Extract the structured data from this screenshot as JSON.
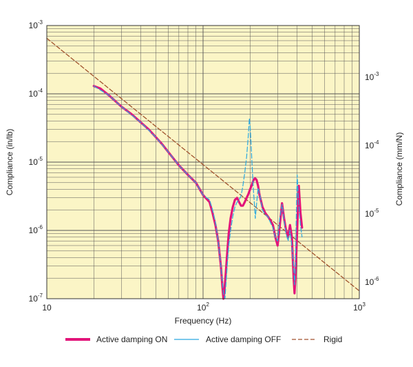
{
  "chart_data": {
    "type": "line",
    "xlabel": "Frequency (Hz)",
    "ylabel": "Compliance (in/lb)",
    "ylabel_right": "Compliance (mm/N)",
    "x_scale": "log",
    "y_scale": "log",
    "xlim": [
      10,
      1000
    ],
    "ylim": [
      1e-07,
      0.001
    ],
    "ylim_right": [
      5.71e-07,
      0.00571
    ],
    "x_tick_labels": [
      {
        "value": 10,
        "base": "10",
        "exp": ""
      },
      {
        "value": 100,
        "base": "10",
        "exp": "2"
      },
      {
        "value": 1000,
        "base": "10",
        "exp": "3"
      }
    ],
    "y_tick_labels": [
      {
        "value": 1e-07,
        "base": "10",
        "exp": "-7"
      },
      {
        "value": 1e-06,
        "base": "10",
        "exp": "-6"
      },
      {
        "value": 1e-05,
        "base": "10",
        "exp": "-5"
      },
      {
        "value": 0.0001,
        "base": "10",
        "exp": "-4"
      },
      {
        "value": 0.001,
        "base": "10",
        "exp": "-3"
      }
    ],
    "y_right_tick_labels": [
      {
        "value": 1e-06,
        "base": "10",
        "exp": "-6"
      },
      {
        "value": 1e-05,
        "base": "10",
        "exp": "-5"
      },
      {
        "value": 0.0001,
        "base": "10",
        "exp": "-4"
      },
      {
        "value": 0.001,
        "base": "10",
        "exp": "-3"
      }
    ],
    "grid": true,
    "legend_position": "bottom",
    "colors": {
      "plot_background": "#fbf5c6",
      "grid": "#555555",
      "damping_on": "#e2157a",
      "damping_off": "#29a8e0",
      "rigid": "#a0522d"
    },
    "series": [
      {
        "name": "Active damping ON",
        "style": "solid",
        "x": [
          20,
          22,
          25,
          30,
          35,
          40,
          45,
          50,
          55,
          60,
          70,
          80,
          90,
          100,
          110,
          115,
          120,
          125,
          130,
          133,
          135,
          137,
          140,
          143,
          146,
          150,
          155,
          160,
          165,
          170,
          175,
          180,
          185,
          190,
          195,
          200,
          205,
          210,
          215,
          220,
          225,
          230,
          240,
          250,
          260,
          270,
          280,
          290,
          300,
          310,
          320,
          330,
          340,
          350,
          360,
          370,
          375,
          380,
          385,
          390,
          400,
          410,
          420,
          430
        ],
        "y": [
          0.00013,
          0.00012,
          9.5e-05,
          6.5e-05,
          5e-05,
          3.8e-05,
          3e-05,
          2.3e-05,
          1.8e-05,
          1.4e-05,
          9e-06,
          6.5e-06,
          5e-06,
          3.3e-06,
          2.6e-06,
          1.8e-06,
          1.2e-06,
          7e-07,
          3e-07,
          1.5e-07,
          1e-07,
          1.3e-07,
          2.5e-07,
          5e-07,
          9e-07,
          1.5e-06,
          2.2e-06,
          2.8e-06,
          3e-06,
          2.6e-06,
          2.3e-06,
          2.3e-06,
          2.6e-06,
          3e-06,
          3.4e-06,
          4e-06,
          4.6e-06,
          5.4e-06,
          5.8e-06,
          5.5e-06,
          4.5e-06,
          3.3e-06,
          2.2e-06,
          1.8e-06,
          1.6e-06,
          1.4e-06,
          1.2e-06,
          8e-07,
          6e-07,
          1.2e-06,
          2.5e-06,
          1.5e-06,
          1e-06,
          8e-07,
          1.2e-06,
          8e-07,
          4e-07,
          2e-07,
          1.2e-07,
          2e-07,
          1e-06,
          4.5e-06,
          1.8e-06,
          1.1e-06
        ]
      },
      {
        "name": "Active damping OFF",
        "style": "dashed",
        "x": [
          20,
          25,
          30,
          40,
          50,
          60,
          70,
          80,
          90,
          100,
          110,
          115,
          120,
          125,
          130,
          135,
          138,
          140,
          143,
          146,
          150,
          155,
          160,
          165,
          170,
          175,
          180,
          185,
          190,
          195,
          198,
          200,
          203,
          206,
          210,
          213,
          216,
          220,
          225,
          230,
          240,
          250,
          260,
          270,
          280,
          290,
          300,
          310,
          320,
          330,
          340,
          350,
          360,
          370,
          380,
          385,
          390,
          395,
          400,
          410,
          420,
          430
        ],
        "y": [
          0.00013,
          9.5e-05,
          6.5e-05,
          3.8e-05,
          2.3e-05,
          1.4e-05,
          9e-06,
          6.5e-06,
          5e-06,
          3.3e-06,
          2.8e-06,
          2e-06,
          1.3e-06,
          7e-07,
          3e-07,
          1.2e-07,
          1e-07,
          1.6e-07,
          3.2e-07,
          6e-07,
          1e-06,
          1.6e-06,
          2.2e-06,
          2.6e-06,
          2.8e-06,
          3.2e-06,
          4.5e-06,
          7e-06,
          1.2e-05,
          2.5e-05,
          4.4e-05,
          3.5e-05,
          1.8e-05,
          9e-06,
          4e-06,
          2.5e-06,
          1.5e-06,
          2.4e-06,
          4.2e-06,
          3.5e-06,
          2e-06,
          1.7e-06,
          1.6e-06,
          1.3e-06,
          1.1e-06,
          8e-07,
          7e-07,
          1.5e-06,
          2.4e-06,
          1.4e-06,
          9e-07,
          7e-07,
          1e-06,
          6e-07,
          3e-07,
          1.6e-07,
          3e-07,
          1.5e-06,
          6.5e-06,
          2.3e-06,
          1.2e-06,
          8e-07
        ]
      },
      {
        "name": "Rigid",
        "style": "dashed",
        "x": [
          10,
          1000
        ],
        "y": [
          0.00065,
          1.3e-07
        ]
      }
    ]
  }
}
